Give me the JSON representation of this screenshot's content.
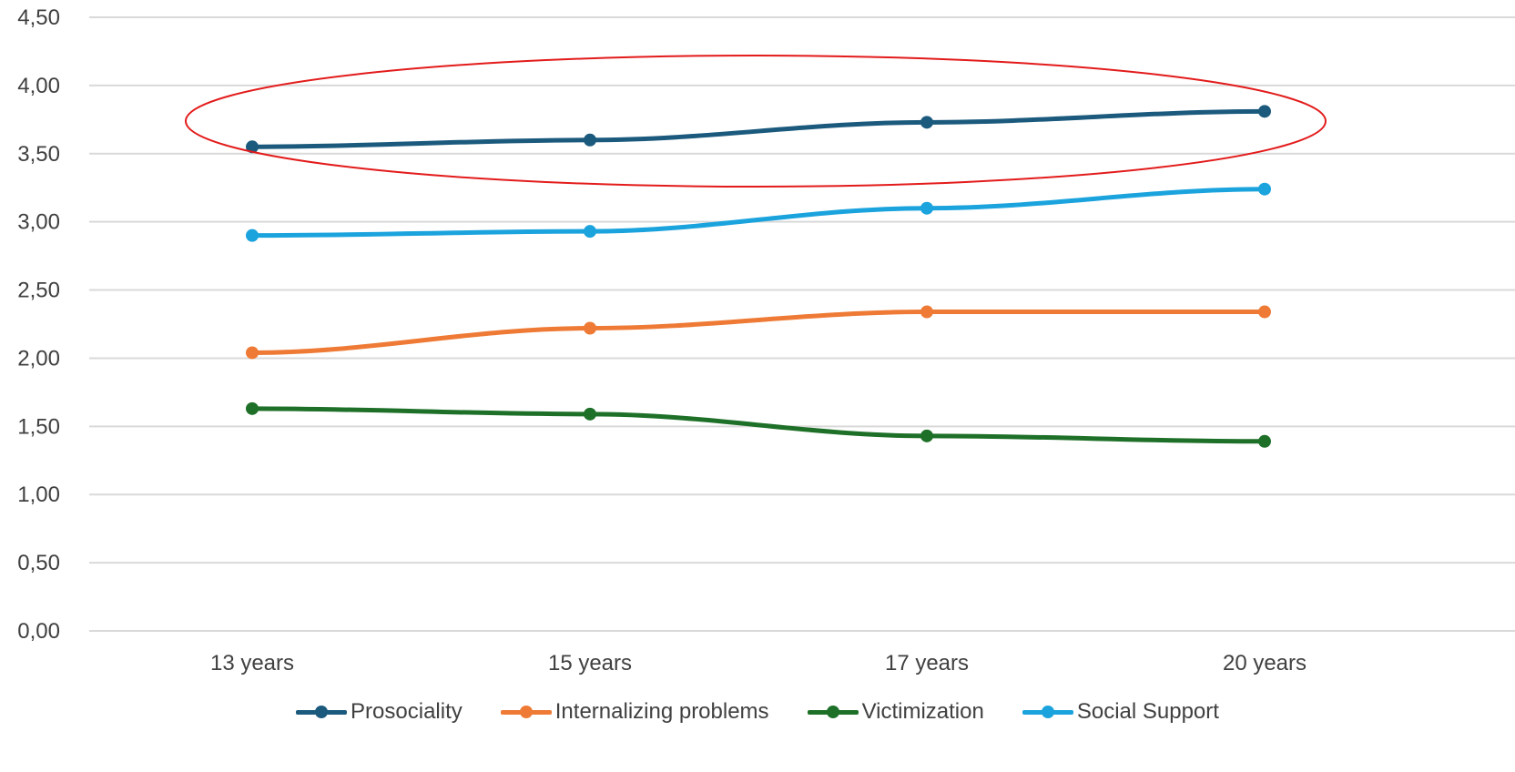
{
  "chart_data": {
    "type": "line",
    "categories": [
      "13 years",
      "15 years",
      "17 years",
      "20 years"
    ],
    "series": [
      {
        "name": "Prosociality",
        "values": [
          3.55,
          3.6,
          3.73,
          3.81
        ],
        "color": "#1b5a7d"
      },
      {
        "name": "Internalizing problems",
        "values": [
          2.04,
          2.22,
          2.34,
          2.34
        ],
        "color": "#ee7a35"
      },
      {
        "name": "Victimization",
        "values": [
          1.63,
          1.59,
          1.43,
          1.39
        ],
        "color": "#1e7028"
      },
      {
        "name": "Social Support",
        "values": [
          2.9,
          2.93,
          3.1,
          3.24
        ],
        "color": "#1ba3dd"
      }
    ],
    "y_ticks": [
      "0,00",
      "0,50",
      "1,00",
      "1,50",
      "2,00",
      "2,50",
      "3,00",
      "3,50",
      "4,00",
      "4,50"
    ],
    "ylim": [
      0,
      4.5
    ],
    "grid": true,
    "legend_position": "bottom",
    "annotation": {
      "shape": "ellipse",
      "color": "#e31b1b",
      "highlights": "Prosociality"
    }
  }
}
